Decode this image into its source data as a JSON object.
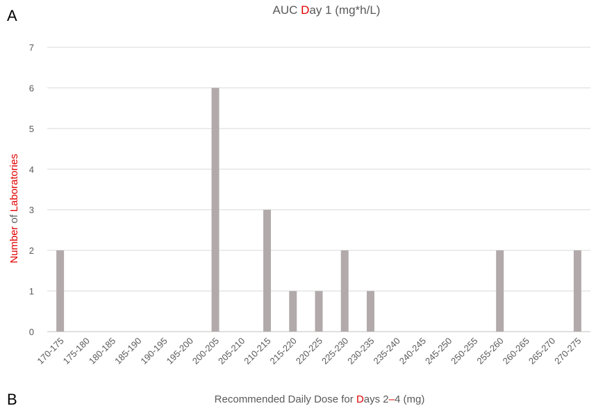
{
  "panel_labels": {
    "top": "A",
    "bottom": "B"
  },
  "colors": {
    "bar": "#b2aaaa",
    "text": "#595959",
    "highlight": "#e00000",
    "grid": "#d9d9d9"
  },
  "chart_data": {
    "type": "bar",
    "title": {
      "prefix": "AUC ",
      "highlight": "D",
      "suffix": "ay 1 (mg*h/L)"
    },
    "xlabel": {
      "prefix": "Recommended Daily Dose for ",
      "highlight": "D",
      "middle": "ays 2",
      "dash": "–",
      "suffix": "4 (mg)"
    },
    "ylabel": {
      "part1": "Number",
      "part2": " of ",
      "part3": "Laboratories"
    },
    "ylim": [
      0,
      7
    ],
    "yticks": [
      "0",
      "1",
      "2",
      "3",
      "4",
      "5",
      "6",
      "7"
    ],
    "categories": [
      "170-175",
      "175-180",
      "180-185",
      "185-190",
      "190-195",
      "195-200",
      "200-205",
      "205-210",
      "210-215",
      "215-220",
      "220-225",
      "225-230",
      "230-235",
      "235-240",
      "240-245",
      "245-250",
      "250-255",
      "255-260",
      "260-265",
      "265-270",
      "270-275"
    ],
    "values": [
      2,
      0,
      0,
      0,
      0,
      0,
      6,
      0,
      3,
      1,
      1,
      2,
      1,
      0,
      0,
      0,
      0,
      2,
      0,
      0,
      2
    ],
    "grid": true,
    "legend": "none"
  }
}
